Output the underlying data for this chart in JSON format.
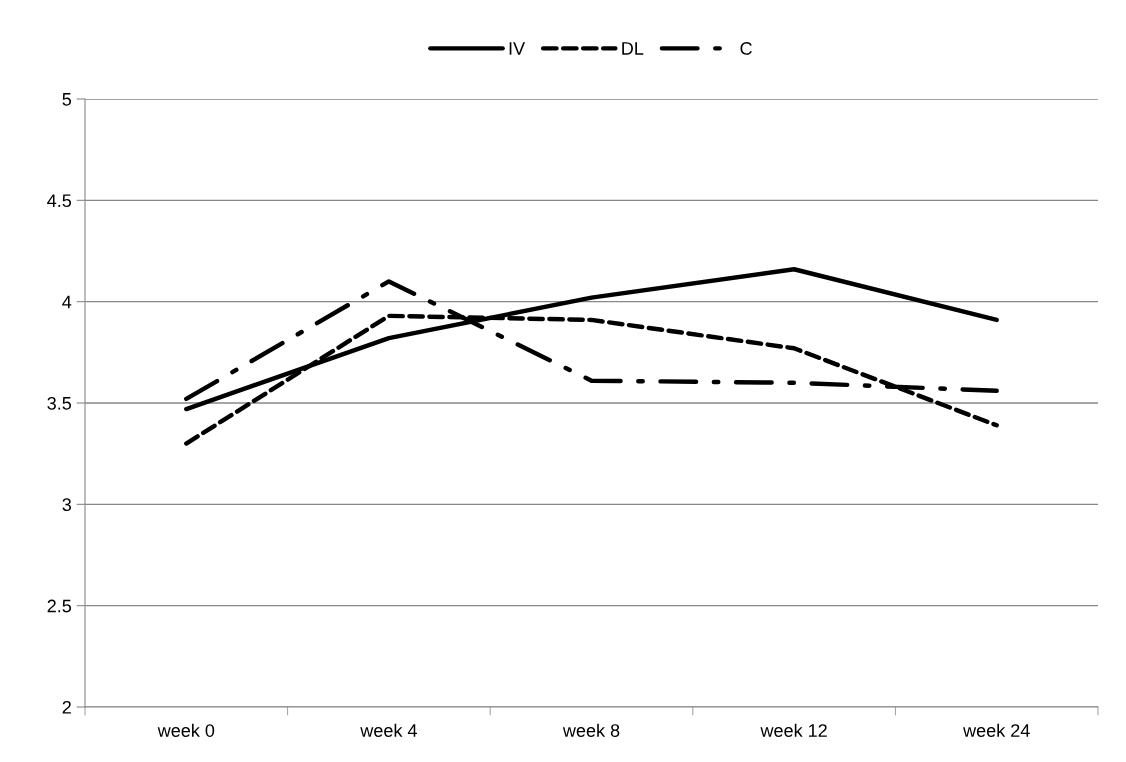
{
  "chart_data": {
    "type": "line",
    "categories": [
      "week 0",
      "week 4",
      "week 8",
      "week 12",
      "week 24"
    ],
    "series": [
      {
        "name": "IV",
        "color": "#000000",
        "line_style": "solid",
        "values": [
          3.47,
          3.82,
          4.02,
          4.16,
          3.91
        ]
      },
      {
        "name": "DL",
        "color": "#000000",
        "line_style": "dashed",
        "values": [
          3.3,
          3.93,
          3.91,
          3.77,
          3.39
        ]
      },
      {
        "name": "C",
        "color": "#000000",
        "line_style": "dashdot",
        "values": [
          3.52,
          4.1,
          3.61,
          3.6,
          3.56
        ]
      }
    ],
    "ylim": [
      2,
      5
    ],
    "yticks": [
      2,
      2.5,
      3,
      3.5,
      4,
      4.5,
      5
    ],
    "grid": "y",
    "legend": "top",
    "marker": "none"
  }
}
